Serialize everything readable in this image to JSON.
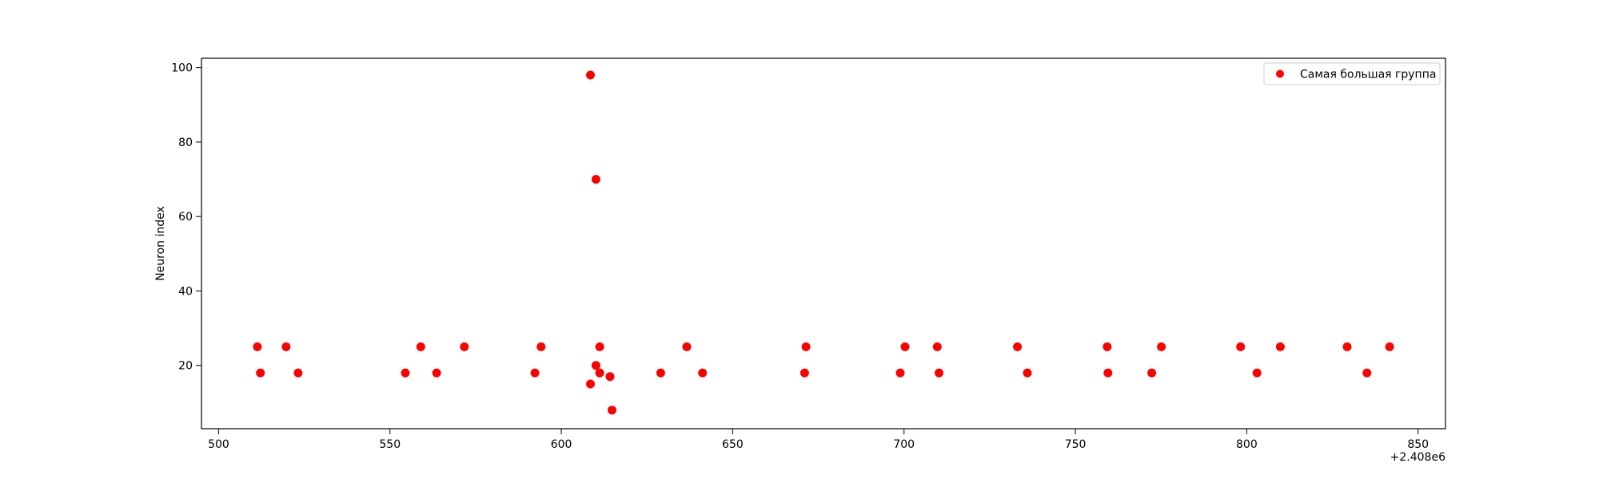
{
  "chart_data": {
    "type": "scatter",
    "title": "",
    "xlabel": "",
    "ylabel": "Neuron index",
    "x_offset_label": "+2.408e6",
    "xlim": [
      495,
      858
    ],
    "ylim": [
      3,
      102.5
    ],
    "x_ticks": [
      500,
      550,
      600,
      650,
      700,
      750,
      800,
      850
    ],
    "y_ticks": [
      20,
      40,
      60,
      80,
      100
    ],
    "grid": false,
    "legend_position": "top-right",
    "marker_color": "#ff0000",
    "series": [
      {
        "name": "Самая большая группа",
        "points": [
          [
            511.3,
            25
          ],
          [
            512.2,
            18
          ],
          [
            519.7,
            25
          ],
          [
            523.2,
            18
          ],
          [
            554.5,
            18
          ],
          [
            559.0,
            25
          ],
          [
            563.6,
            18
          ],
          [
            571.7,
            25
          ],
          [
            592.3,
            18
          ],
          [
            594.1,
            25
          ],
          [
            608.5,
            98
          ],
          [
            608.5,
            15
          ],
          [
            610.1,
            70
          ],
          [
            610.1,
            20
          ],
          [
            611.2,
            25
          ],
          [
            611.2,
            18
          ],
          [
            614.2,
            17
          ],
          [
            614.8,
            8
          ],
          [
            629.0,
            18
          ],
          [
            636.6,
            25
          ],
          [
            641.2,
            18
          ],
          [
            671.0,
            18
          ],
          [
            671.4,
            25
          ],
          [
            698.9,
            18
          ],
          [
            700.3,
            25
          ],
          [
            709.7,
            25
          ],
          [
            710.2,
            18
          ],
          [
            733.1,
            25
          ],
          [
            736.0,
            18
          ],
          [
            759.3,
            25
          ],
          [
            759.5,
            18
          ],
          [
            772.3,
            18
          ],
          [
            775.1,
            25
          ],
          [
            798.2,
            25
          ],
          [
            803.0,
            18
          ],
          [
            809.8,
            25
          ],
          [
            829.3,
            25
          ],
          [
            835.1,
            18
          ],
          [
            841.7,
            25
          ]
        ]
      }
    ]
  }
}
